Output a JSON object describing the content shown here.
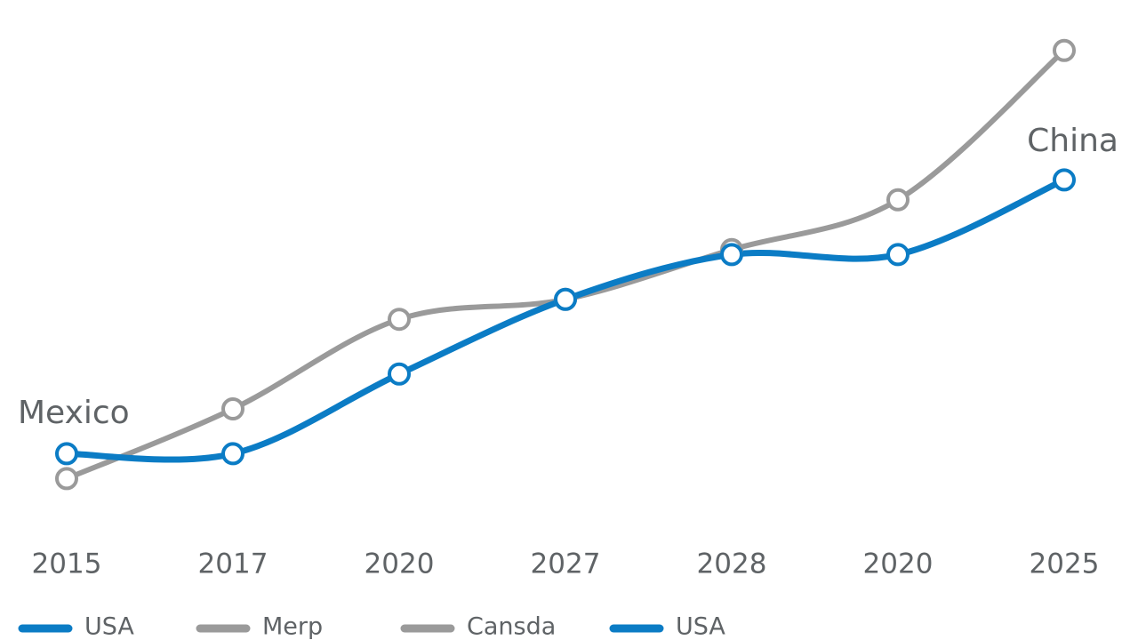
{
  "chart_data": {
    "type": "line",
    "categories": [
      "2015",
      "2017",
      "2020",
      "2027",
      "2028",
      "2020",
      "2025"
    ],
    "series": [
      {
        "color": "#9a9a9a",
        "values": [
          11,
          25,
          43,
          47,
          57,
          67,
          97
        ]
      },
      {
        "color": "#0b7cc5",
        "values": [
          16,
          16,
          32,
          47,
          56,
          56,
          71
        ]
      }
    ],
    "ylim": [
      0,
      100
    ],
    "annotations": [
      "Mexico",
      "China"
    ],
    "legend": [
      {
        "name": "USA",
        "color": "#0b7cc5"
      },
      {
        "name": "Merp",
        "color": "#9a9a9a"
      },
      {
        "name": "Cansda",
        "color": "#9a9a9a"
      },
      {
        "name": "USA",
        "color": "#0b7cc5"
      }
    ]
  }
}
